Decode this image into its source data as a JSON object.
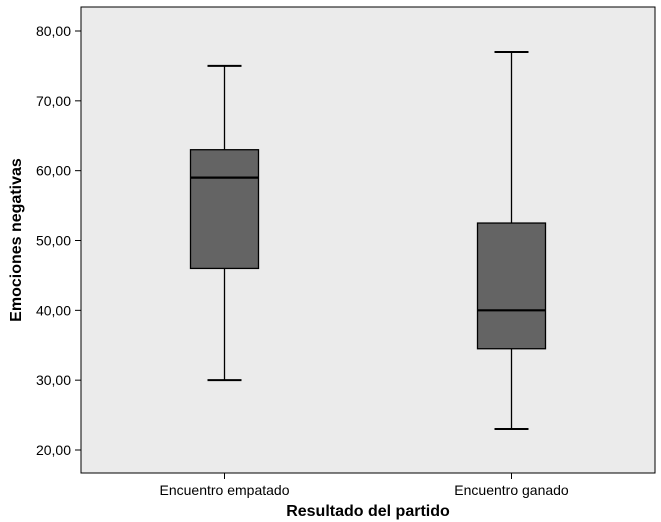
{
  "chart_data": {
    "type": "boxplot",
    "title": "",
    "xlabel": "Resultado del partido",
    "ylabel": "Emociones negativas",
    "ylim": [
      17,
      83
    ],
    "yticks": [
      20,
      30,
      40,
      50,
      60,
      70,
      80
    ],
    "ytick_labels": [
      "20,00",
      "30,00",
      "40,00",
      "50,00",
      "60,00",
      "70,00",
      "80,00"
    ],
    "categories": [
      "Encuentro empatado",
      "Encuentro ganado"
    ],
    "boxes": [
      {
        "category": "Encuentro empatado",
        "min": 30,
        "q1": 46,
        "median": 59,
        "q3": 63,
        "max": 75
      },
      {
        "category": "Encuentro ganado",
        "min": 23,
        "q1": 34.5,
        "median": 40,
        "q3": 52.5,
        "max": 77
      }
    ],
    "grid": false,
    "legend": "none",
    "colors": {
      "plot_background": "#ebebeb",
      "box_fill": "#646464",
      "line": "#000000"
    }
  }
}
